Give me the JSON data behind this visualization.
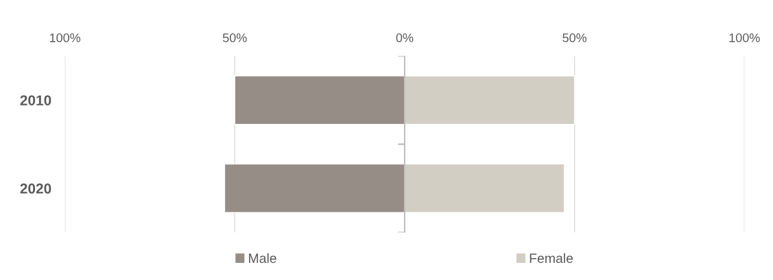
{
  "chart_data": {
    "type": "bar",
    "orientation": "horizontal",
    "stacked": true,
    "categories": [
      "2010",
      "2020"
    ],
    "series": [
      {
        "name": "Male",
        "color": "#978d87",
        "values": [
          -50,
          -53
        ]
      },
      {
        "name": "Female",
        "color": "#d3cec3",
        "values": [
          50,
          47
        ]
      }
    ],
    "xlim": [
      -100,
      100
    ],
    "xticks": [
      {
        "value": -100,
        "label": "100%"
      },
      {
        "value": -50,
        "label": "50%"
      },
      {
        "value": 0,
        "label": "0%"
      },
      {
        "value": 50,
        "label": "50%"
      },
      {
        "value": 100,
        "label": "100%"
      }
    ],
    "grid": "x",
    "legend": "bottom"
  }
}
